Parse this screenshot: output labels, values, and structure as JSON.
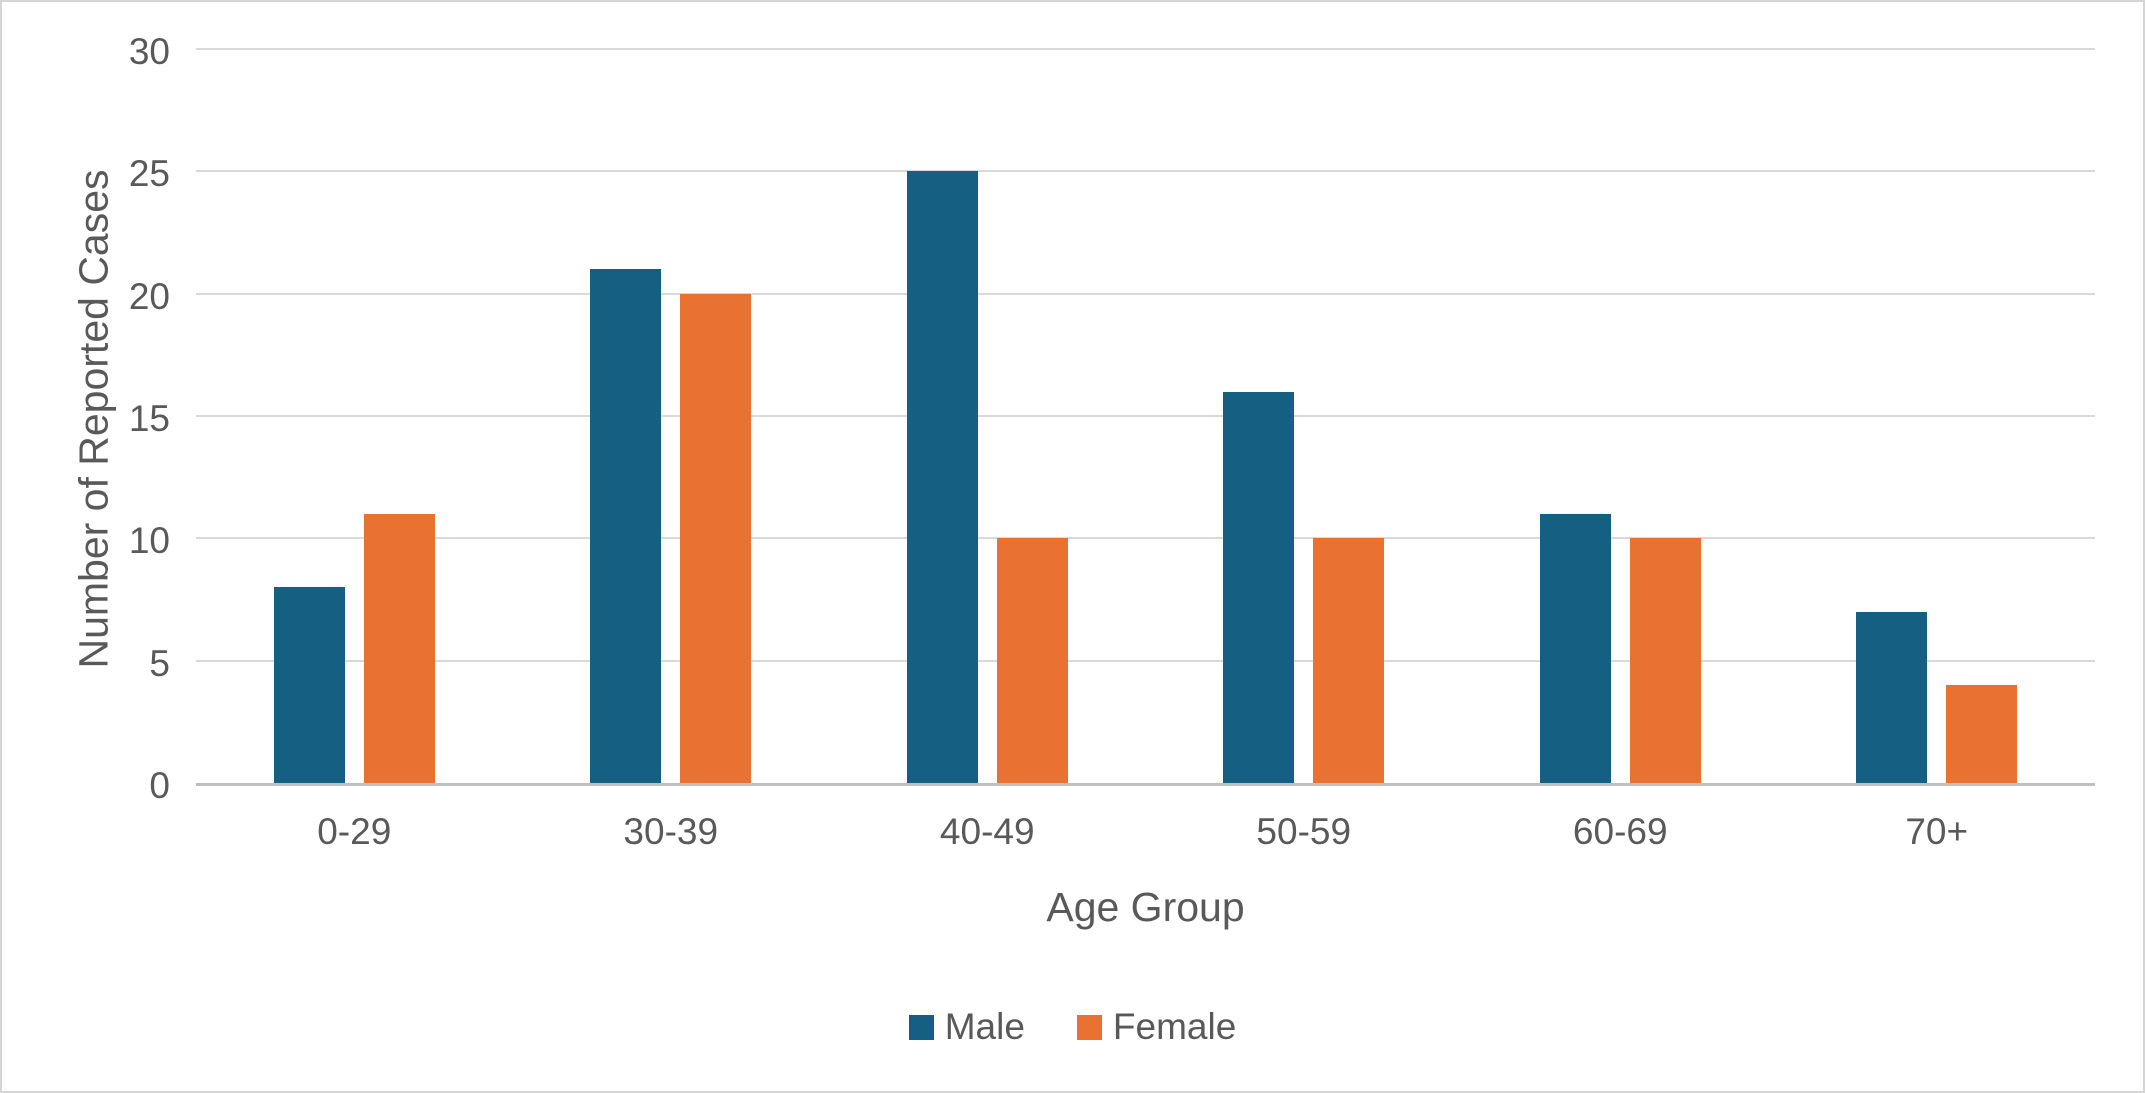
{
  "chart_data": {
    "type": "bar",
    "title": "",
    "categories": [
      "0-29",
      "30-39",
      "40-49",
      "50-59",
      "60-69",
      "70+"
    ],
    "series": [
      {
        "name": "Male",
        "color": "#156082",
        "values": [
          8,
          21,
          25,
          16,
          11,
          7
        ]
      },
      {
        "name": "Female",
        "color": "#E97132",
        "values": [
          11,
          20,
          10,
          10,
          10,
          4
        ]
      }
    ],
    "xlabel": "Age Group",
    "ylabel": "Number of Reported Cases",
    "ylim": [
      0,
      30
    ],
    "ytick_step": 5,
    "ytick_labels": [
      "0",
      "5",
      "10",
      "15",
      "20",
      "25",
      "30"
    ],
    "grid": "horizontal",
    "legend_position": "bottom",
    "colors": {
      "text": "#595959",
      "gridline": "#D9D9D9",
      "axis_line": "#BFBFBF",
      "background": "#FFFFFF",
      "border": "#D5D5D5"
    }
  }
}
